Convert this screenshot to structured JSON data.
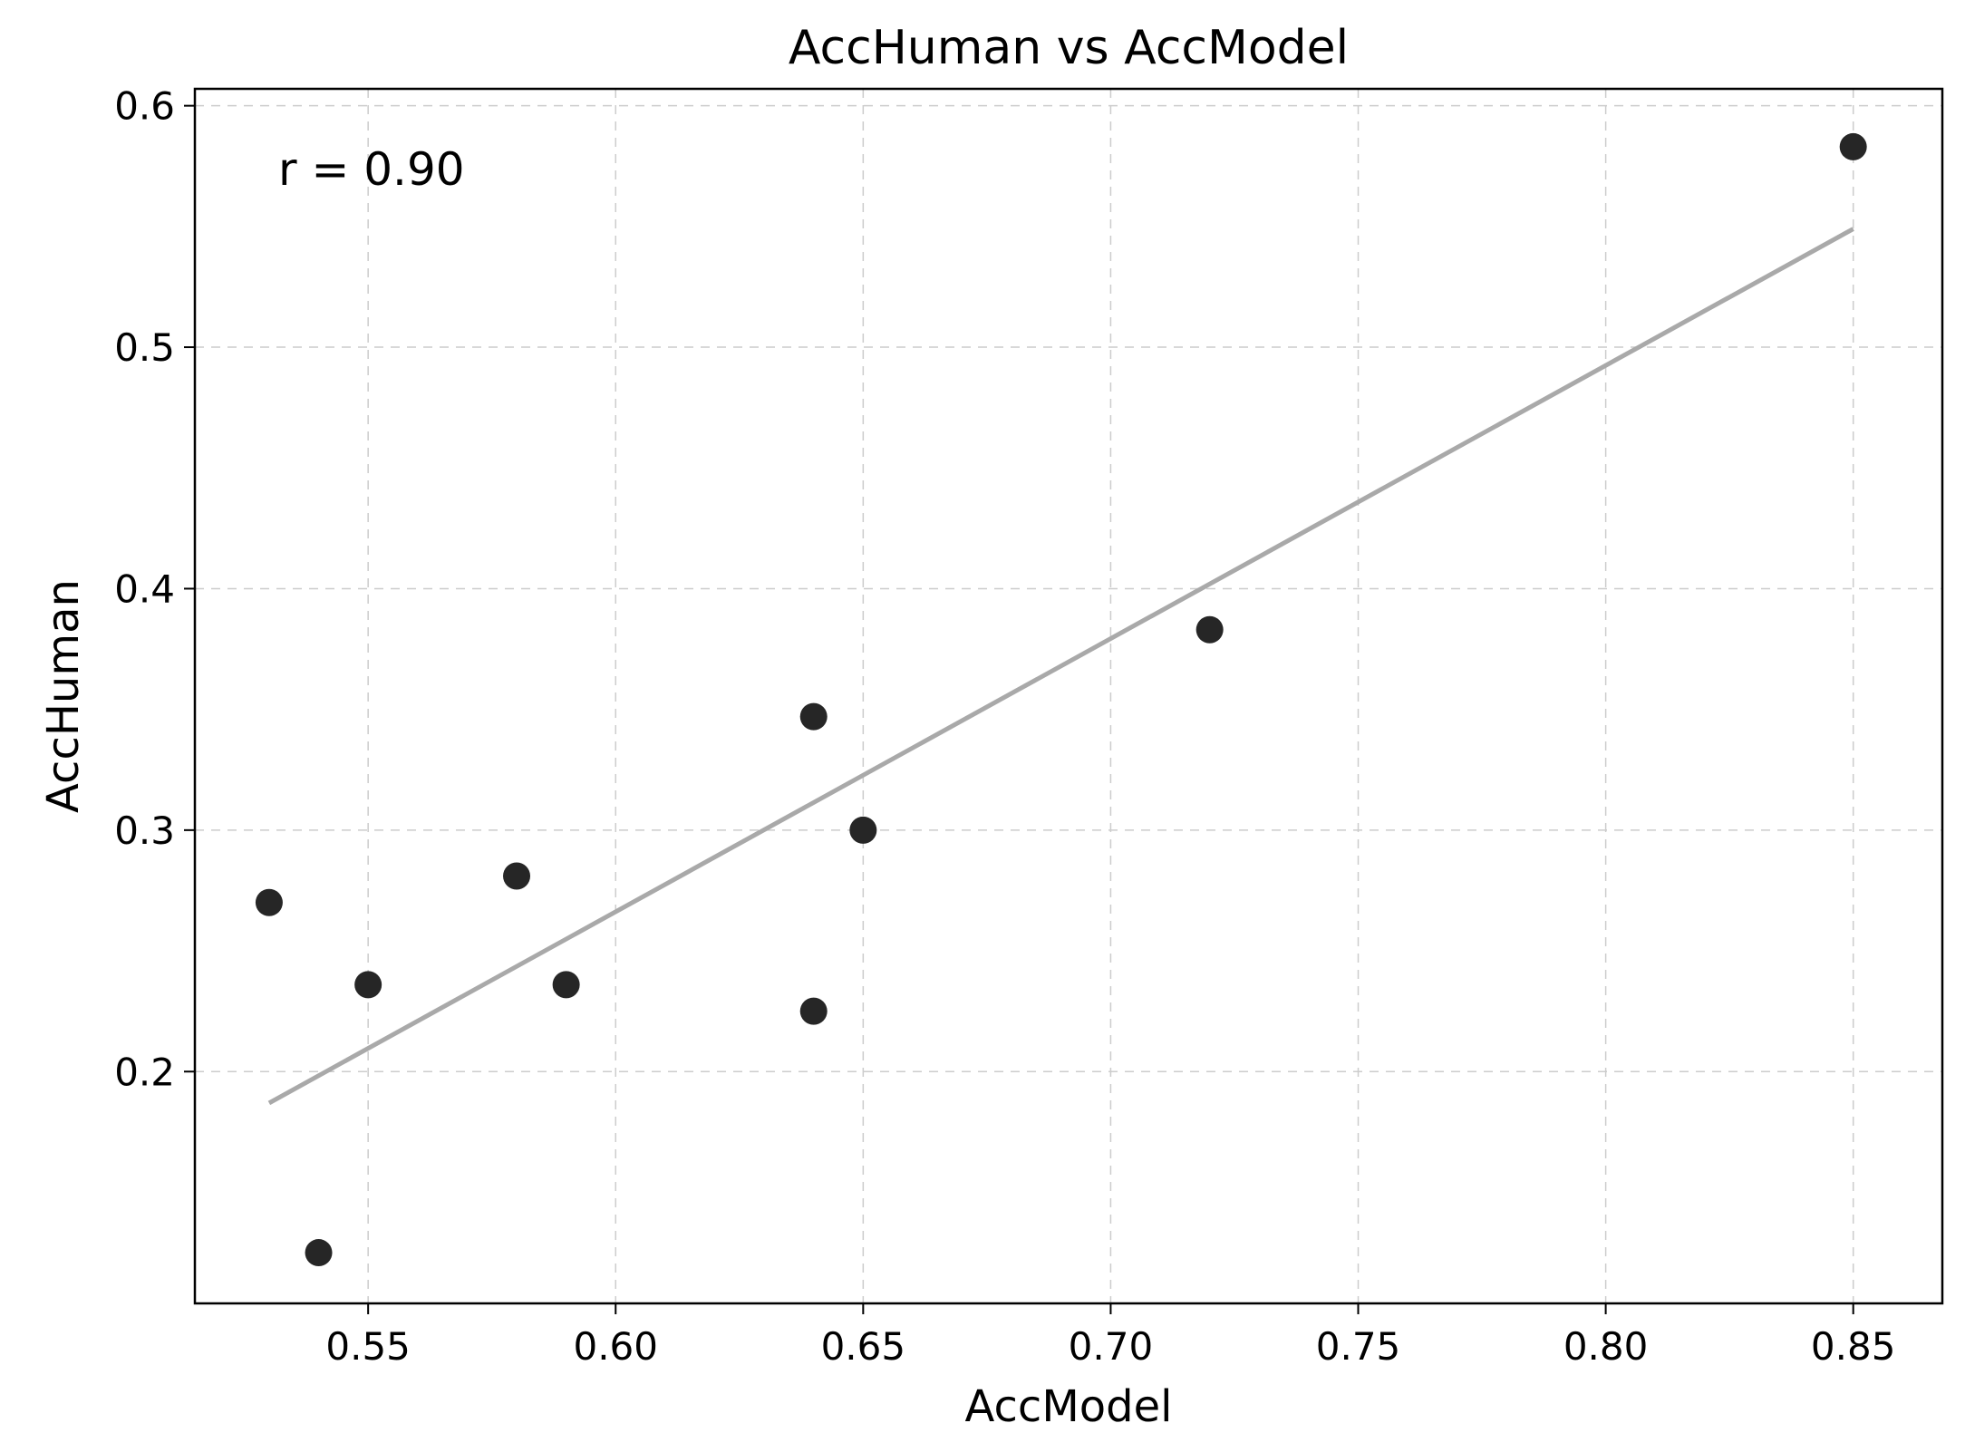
{
  "chart_data": {
    "type": "scatter",
    "title": "AccHuman vs AccModel",
    "xlabel": "AccModel",
    "ylabel": "AccHuman",
    "xlim": [
      0.515,
      0.868
    ],
    "ylim": [
      0.104,
      0.607
    ],
    "xticks": [
      0.55,
      0.6,
      0.65,
      0.7,
      0.75,
      0.8,
      0.85
    ],
    "xtick_labels": [
      "0.55",
      "0.60",
      "0.65",
      "0.70",
      "0.75",
      "0.80",
      "0.85"
    ],
    "yticks": [
      0.2,
      0.3,
      0.4,
      0.5,
      0.6
    ],
    "ytick_labels": [
      "0.2",
      "0.3",
      "0.4",
      "0.5",
      "0.6"
    ],
    "grid": true,
    "annotation": "r = 0.90",
    "points": [
      {
        "x": 0.53,
        "y": 0.27
      },
      {
        "x": 0.54,
        "y": 0.125
      },
      {
        "x": 0.55,
        "y": 0.236
      },
      {
        "x": 0.58,
        "y": 0.281
      },
      {
        "x": 0.59,
        "y": 0.236
      },
      {
        "x": 0.64,
        "y": 0.347
      },
      {
        "x": 0.64,
        "y": 0.225
      },
      {
        "x": 0.65,
        "y": 0.3
      },
      {
        "x": 0.72,
        "y": 0.383
      },
      {
        "x": 0.85,
        "y": 0.583
      }
    ],
    "trend_line": {
      "x": [
        0.53,
        0.85
      ],
      "y": [
        0.187,
        0.549
      ]
    },
    "colors": {
      "points": "#262626",
      "trend": "#a9a9a9",
      "grid": "#cccccc"
    }
  }
}
